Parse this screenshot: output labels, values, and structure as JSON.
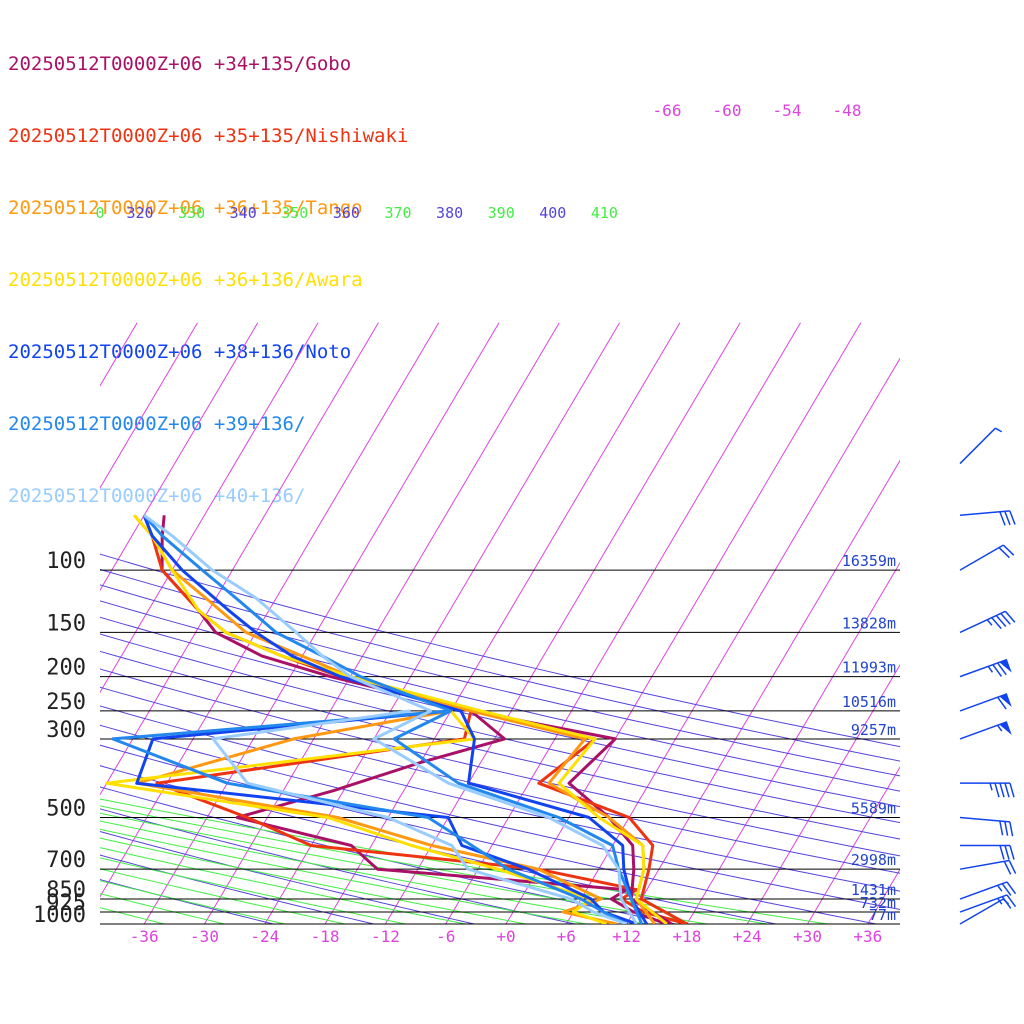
{
  "chart_data": {
    "type": "line",
    "title": "",
    "xlabel": "",
    "ylabel": "",
    "pressure_levels": [
      100,
      150,
      200,
      250,
      300,
      500,
      700,
      850,
      925,
      1000
    ],
    "pressure_labels": [
      "100",
      "150",
      "200",
      "250",
      "300",
      "500",
      "700",
      "850",
      "925",
      "1000"
    ],
    "heights": [
      "16359m",
      "13828m",
      "11993m",
      "10516m",
      "9257m",
      "5589m",
      "2998m",
      "1431m",
      "732m",
      "77m"
    ],
    "temperature_ticks": [
      "-36",
      "-30",
      "-24",
      "-18",
      "-12",
      "-6",
      "+0",
      "+6",
      "+12",
      "+18",
      "+24",
      "+30",
      "+36"
    ],
    "temperature_tick_values": [
      -36,
      -30,
      -24,
      -18,
      -12,
      -6,
      0,
      6,
      12,
      18,
      24,
      30,
      36
    ],
    "upper_temperature_labels": [
      "-66",
      "-60",
      "-54",
      "-48"
    ],
    "theta_labels": [
      "0",
      "320",
      "330",
      "340",
      "350",
      "360",
      "370",
      "380",
      "390",
      "400",
      "410"
    ],
    "series": [
      {
        "name": "20250512T0000Z+06 +34+135/Gobo",
        "color": "#aa1166",
        "points": [
          [
            1000,
            16.5
          ],
          [
            850,
            11
          ],
          [
            700,
            9.5
          ],
          [
            600,
            8
          ],
          [
            500,
            4
          ],
          [
            400,
            -2
          ],
          [
            300,
            0
          ],
          [
            250,
            -16
          ],
          [
            200,
            -32
          ],
          [
            175,
            -40
          ],
          [
            150,
            -46
          ],
          [
            130,
            -49
          ],
          [
            100,
            -55
          ],
          [
            80,
            -57
          ],
          [
            70,
            -58
          ]
        ]
      },
      {
        "name": "20250512T0000Z+06 +35+135/Nishiwaki",
        "color": "#ee3311",
        "points": [
          [
            1000,
            18
          ],
          [
            850,
            12
          ],
          [
            700,
            11
          ],
          [
            600,
            10
          ],
          [
            500,
            6
          ],
          [
            400,
            -5
          ],
          [
            300,
            -2
          ],
          [
            250,
            -16
          ],
          [
            200,
            -31
          ],
          [
            175,
            -38
          ],
          [
            150,
            -45
          ],
          [
            130,
            -49
          ],
          [
            100,
            -55
          ],
          [
            80,
            -58
          ],
          [
            70,
            -60
          ]
        ]
      },
      {
        "name": "20250512T0000Z+06 +36+135/Tango",
        "color": "#ff9911",
        "points": [
          [
            1000,
            14.8
          ],
          [
            850,
            11.5
          ],
          [
            700,
            10.5
          ],
          [
            600,
            9
          ],
          [
            500,
            4
          ],
          [
            400,
            -4
          ],
          [
            300,
            -3
          ],
          [
            250,
            -16
          ],
          [
            200,
            -30
          ],
          [
            175,
            -36
          ],
          [
            150,
            -43
          ],
          [
            120,
            -49
          ],
          [
            100,
            -54
          ],
          [
            80,
            -58
          ],
          [
            70,
            -61
          ]
        ]
      },
      {
        "name": "20250512T0000Z+06 +36+136/Awara",
        "color": "#ffe000",
        "points": [
          [
            1000,
            16
          ],
          [
            850,
            11.5
          ],
          [
            700,
            10.5
          ],
          [
            600,
            9
          ],
          [
            500,
            3
          ],
          [
            400,
            -3
          ],
          [
            300,
            -2
          ],
          [
            250,
            -15
          ],
          [
            200,
            -30
          ],
          [
            175,
            -38
          ],
          [
            150,
            -45
          ],
          [
            130,
            -49
          ],
          [
            100,
            -54
          ],
          [
            80,
            -58
          ],
          [
            70,
            -61
          ]
        ]
      },
      {
        "name": "20250512T0000Z+06 +38+136/Noto",
        "color": "#1144ee",
        "points": [
          [
            1000,
            14
          ],
          [
            850,
            11
          ],
          [
            700,
            8.5
          ],
          [
            600,
            7
          ],
          [
            500,
            2
          ],
          [
            400,
            -12
          ],
          [
            300,
            -14
          ],
          [
            250,
            -17
          ],
          [
            200,
            -31
          ],
          [
            175,
            -37
          ],
          [
            150,
            -42
          ],
          [
            130,
            -46
          ],
          [
            100,
            -53
          ],
          [
            80,
            -58
          ],
          [
            70,
            -60
          ]
        ]
      },
      {
        "name": "20250512T0000Z+06 +39+136/",
        "color": "#2288ee",
        "points": [
          [
            1000,
            13.5
          ],
          [
            850,
            11
          ],
          [
            700,
            8
          ],
          [
            600,
            6
          ],
          [
            500,
            -1
          ],
          [
            400,
            -13
          ],
          [
            300,
            -22
          ],
          [
            250,
            -18
          ],
          [
            200,
            -29
          ],
          [
            175,
            -34
          ],
          [
            150,
            -40
          ],
          [
            120,
            -46
          ],
          [
            100,
            -51
          ],
          [
            80,
            -57
          ],
          [
            70,
            -60
          ]
        ]
      },
      {
        "name": "20250512T0000Z+06 +40+136/",
        "color": "#99ccff",
        "points": [
          [
            1000,
            13
          ],
          [
            850,
            10
          ],
          [
            700,
            8
          ],
          [
            600,
            5
          ],
          [
            500,
            -2
          ],
          [
            400,
            -14
          ],
          [
            300,
            -24
          ],
          [
            250,
            -20
          ],
          [
            200,
            -30
          ],
          [
            175,
            -34
          ],
          [
            150,
            -38
          ],
          [
            120,
            -44
          ],
          [
            100,
            -50
          ],
          [
            80,
            -56
          ],
          [
            70,
            -60
          ]
        ]
      }
    ],
    "dewpoint_series": [
      {
        "name": "20250512T0000Z+06 +34+135/Gobo",
        "color": "#aa1166",
        "points": [
          [
            1000,
            16
          ],
          [
            925,
            12
          ],
          [
            850,
            9
          ],
          [
            800,
            10
          ],
          [
            700,
            -16
          ],
          [
            600,
            -20
          ],
          [
            500,
            -33
          ],
          [
            420,
            -25
          ],
          [
            350,
            -18
          ],
          [
            300,
            -11
          ],
          [
            250,
            -16
          ]
        ]
      },
      {
        "name": "20250512T0000Z+06 +35+135/Nishiwaki",
        "color": "#ee3311",
        "points": [
          [
            1000,
            18
          ],
          [
            925,
            13
          ],
          [
            850,
            10
          ],
          [
            800,
            11
          ],
          [
            700,
            0
          ],
          [
            600,
            -24
          ],
          [
            500,
            -32
          ],
          [
            400,
            -43
          ],
          [
            300,
            -15
          ],
          [
            250,
            -16
          ]
        ]
      },
      {
        "name": "20250512T0000Z+06 +36+135/Tango",
        "color": "#ff9911",
        "points": [
          [
            1000,
            11
          ],
          [
            925,
            5
          ],
          [
            850,
            8
          ],
          [
            700,
            0
          ],
          [
            600,
            -12
          ],
          [
            500,
            -23
          ],
          [
            400,
            -45
          ],
          [
            300,
            -32
          ],
          [
            250,
            -18
          ]
        ]
      },
      {
        "name": "20250512T0000Z+06 +36+136/Awara",
        "color": "#ffe000",
        "points": [
          [
            1000,
            10
          ],
          [
            925,
            6
          ],
          [
            850,
            7
          ],
          [
            700,
            -4
          ],
          [
            600,
            -14
          ],
          [
            500,
            -24
          ],
          [
            400,
            -48
          ],
          [
            300,
            -14
          ],
          [
            250,
            -18
          ]
        ]
      },
      {
        "name": "20250512T0000Z+06 +38+136/Noto",
        "color": "#1144ee",
        "points": [
          [
            1000,
            13
          ],
          [
            925,
            9
          ],
          [
            850,
            7
          ],
          [
            700,
            -1
          ],
          [
            600,
            -9
          ],
          [
            500,
            -12
          ],
          [
            400,
            -45
          ],
          [
            300,
            -46
          ],
          [
            250,
            -18
          ]
        ]
      },
      {
        "name": "20250512T0000Z+06 +39+136/",
        "color": "#2288ee",
        "points": [
          [
            1000,
            12
          ],
          [
            925,
            9
          ],
          [
            850,
            6
          ],
          [
            700,
            -3
          ],
          [
            600,
            -8
          ],
          [
            500,
            -14
          ],
          [
            400,
            -36
          ],
          [
            300,
            -50
          ],
          [
            250,
            -18
          ]
        ]
      },
      {
        "name": "20250512T0000Z+06 +40+136/",
        "color": "#99ccff",
        "points": [
          [
            1000,
            12
          ],
          [
            925,
            8
          ],
          [
            850,
            5
          ],
          [
            700,
            -7
          ],
          [
            600,
            -10
          ],
          [
            500,
            -18
          ],
          [
            400,
            -34
          ],
          [
            300,
            -40
          ],
          [
            250,
            -22
          ]
        ]
      }
    ],
    "wind_barbs": [
      {
        "p": 1000,
        "dir": 240,
        "speed_kt": 5
      },
      {
        "p": 925,
        "dir": 250,
        "speed_kt": 25
      },
      {
        "p": 850,
        "dir": 250,
        "speed_kt": 25
      },
      {
        "p": 700,
        "dir": 260,
        "speed_kt": 20
      },
      {
        "p": 600,
        "dir": 270,
        "speed_kt": 30
      },
      {
        "p": 500,
        "dir": 275,
        "speed_kt": 30
      },
      {
        "p": 400,
        "dir": 270,
        "speed_kt": 45
      },
      {
        "p": 300,
        "dir": 250,
        "speed_kt": 55
      },
      {
        "p": 250,
        "dir": 250,
        "speed_kt": 60
      },
      {
        "p": 200,
        "dir": 250,
        "speed_kt": 75
      },
      {
        "p": 150,
        "dir": 245,
        "speed_kt": 45
      },
      {
        "p": 100,
        "dir": 240,
        "speed_kt": 20
      },
      {
        "p": 70,
        "dir": 265,
        "speed_kt": 30
      },
      {
        "p": 50,
        "dir": 225,
        "speed_kt": 5
      }
    ],
    "grid": true,
    "legend_position": "top-left"
  }
}
